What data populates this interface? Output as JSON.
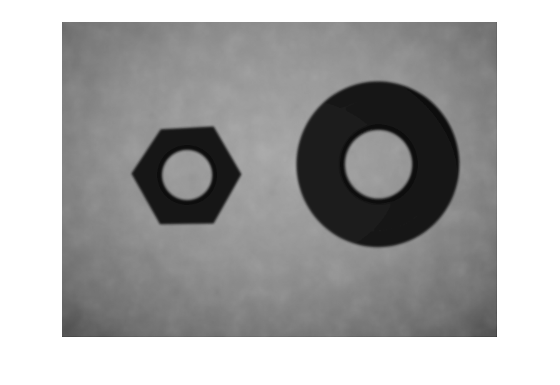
{
  "figure": {
    "background_color": "#ffffff",
    "image": {
      "description_kind": "grayscale photograph",
      "subject": [
        "hex-nut",
        "round-washer"
      ],
      "colors": {
        "surface_dark": "#4e4e4e",
        "surface_light": "#a3a3a3",
        "object": "#161616",
        "object_edge": "#0a0a0a"
      }
    }
  }
}
